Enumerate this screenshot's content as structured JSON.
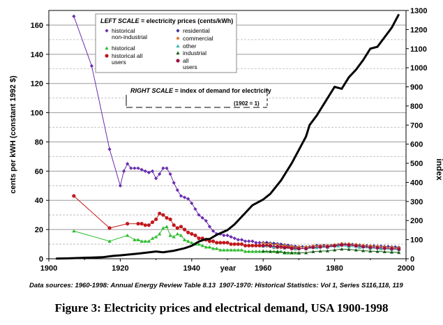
{
  "caption": "Figure 3: Electricity prices and electrical demand, USA 1900-1998",
  "sources": {
    "left": "Data sources: 1960-1998: Annual Energy Review Table 8.13",
    "right": "1907-1970: Historical Statistics:  Vol 1, Series S116,118, 119"
  },
  "chart_data": {
    "type": "line",
    "xlabel": "year",
    "ylabel_left": "cents per kWH (constant 1992 $)",
    "ylabel_right": "index",
    "xlim": [
      1900,
      2000
    ],
    "ylim_left": [
      0,
      170
    ],
    "ylim_right": [
      0,
      1300
    ],
    "x_ticks": [
      "1900",
      "1920",
      "1940",
      "1960",
      "1980",
      "2000"
    ],
    "y_ticks_left": [
      "0",
      "20",
      "40",
      "60",
      "80",
      "100",
      "120",
      "140",
      "160"
    ],
    "y_ticks_right": [
      "0",
      "100",
      "200",
      "300",
      "400",
      "500",
      "600",
      "700",
      "800",
      "900",
      "1000",
      "1100",
      "1200",
      "1300"
    ],
    "grid": true,
    "legend_title_left": "LEFT SCALE",
    "legend_title_left_rest": " = electricity prices (cents/kWh)",
    "legend_title_right": "RIGHT SCALE",
    "legend_title_right_rest": " = index of demand for electricity",
    "legend_note": "(1902 = 1)",
    "legend_items": [
      {
        "label": "historical non-industrial",
        "color": "#6a2cb0",
        "marker": "diamond"
      },
      {
        "label": "historical",
        "color": "#2ebc2e",
        "marker": "triangle"
      },
      {
        "label": "historical all users",
        "color": "#c0181c",
        "marker": "circle"
      },
      {
        "label": "residential",
        "color": "#3c2a96",
        "marker": "diamond"
      },
      {
        "label": "commercial",
        "color": "#e07a2a",
        "marker": "diamond"
      },
      {
        "label": "other",
        "color": "#38b8b0",
        "marker": "triangle"
      },
      {
        "label": "industrial",
        "color": "#1a5c1a",
        "marker": "triangle"
      },
      {
        "label": "all users",
        "color": "#a01040",
        "marker": "circle"
      }
    ],
    "series": [
      {
        "name": "historical non-industrial",
        "axis": "left",
        "color": "#6a2cb0",
        "marker": "diamond",
        "x": [
          1907,
          1912,
          1917,
          1920,
          1921,
          1922,
          1923,
          1924,
          1925,
          1926,
          1927,
          1928,
          1929,
          1930,
          1931,
          1932,
          1933,
          1934,
          1935,
          1936,
          1937,
          1938,
          1939,
          1940,
          1941,
          1942,
          1943,
          1944,
          1945,
          1946,
          1947,
          1948,
          1949,
          1950,
          1951,
          1952,
          1953,
          1954,
          1955,
          1956,
          1957,
          1958,
          1959,
          1960,
          1961,
          1962,
          1963,
          1964,
          1965,
          1966,
          1967,
          1968,
          1969,
          1970
        ],
        "y": [
          166,
          132,
          75,
          50,
          60,
          65,
          62,
          62,
          62,
          61,
          60,
          59,
          60,
          55,
          58,
          62,
          62,
          58,
          52,
          47,
          43,
          42,
          41,
          38,
          34,
          30,
          28,
          26,
          22,
          19,
          17,
          17,
          16,
          16,
          15,
          14,
          13,
          13,
          12,
          12,
          12,
          11,
          11,
          11,
          11,
          10,
          10,
          10,
          9,
          9,
          9,
          8,
          8,
          8
        ]
      },
      {
        "name": "historical",
        "axis": "left",
        "color": "#2ebc2e",
        "marker": "triangle",
        "x": [
          1907,
          1917,
          1922,
          1924,
          1925,
          1926,
          1927,
          1928,
          1929,
          1930,
          1931,
          1932,
          1933,
          1934,
          1935,
          1936,
          1937,
          1938,
          1939,
          1940,
          1941,
          1942,
          1943,
          1944,
          1945,
          1946,
          1947,
          1948,
          1949,
          1950,
          1951,
          1952,
          1953,
          1954,
          1955,
          1956,
          1957,
          1958,
          1959,
          1960,
          1961,
          1962,
          1963,
          1964,
          1965,
          1966,
          1967,
          1968,
          1969,
          1970
        ],
        "y": [
          19,
          12,
          16,
          13,
          13,
          12,
          12,
          12,
          14,
          15,
          17,
          21,
          22,
          16,
          15,
          17,
          16,
          13,
          12,
          11,
          10,
          10,
          9,
          8,
          8,
          7,
          7,
          6,
          6,
          6,
          6,
          6,
          6,
          6,
          5,
          5,
          5,
          5,
          5,
          5,
          5,
          5,
          5,
          5,
          5,
          4,
          4,
          4,
          4,
          4
        ]
      },
      {
        "name": "historical all users",
        "axis": "left",
        "color": "#c0181c",
        "marker": "circle",
        "x": [
          1907,
          1917,
          1922,
          1925,
          1926,
          1927,
          1928,
          1929,
          1930,
          1931,
          1932,
          1933,
          1934,
          1935,
          1936,
          1937,
          1938,
          1939,
          1940,
          1941,
          1942,
          1943,
          1944,
          1945,
          1946,
          1947,
          1948,
          1949,
          1950,
          1951,
          1952,
          1953,
          1954,
          1955,
          1956,
          1957,
          1958,
          1959,
          1960,
          1961,
          1962,
          1963,
          1964,
          1965,
          1966,
          1967,
          1968,
          1969,
          1970
        ],
        "y": [
          43,
          21,
          24,
          24,
          24,
          23,
          23,
          25,
          27,
          31,
          30,
          28,
          27,
          23,
          21,
          22,
          20,
          18,
          17,
          16,
          14,
          14,
          13,
          12,
          12,
          11,
          11,
          11,
          11,
          10,
          10,
          10,
          10,
          9,
          9,
          9,
          9,
          9,
          9,
          9,
          9,
          8,
          8,
          8,
          8,
          8,
          7,
          7,
          7
        ]
      },
      {
        "name": "residential",
        "axis": "left",
        "color": "#3c2a96",
        "marker": "diamond",
        "x": [
          1960,
          1961,
          1962,
          1963,
          1964,
          1965,
          1966,
          1967,
          1968,
          1969,
          1970,
          1971,
          1972,
          1973,
          1974,
          1975,
          1976,
          1977,
          1978,
          1979,
          1980,
          1981,
          1982,
          1983,
          1984,
          1985,
          1986,
          1987,
          1988,
          1989,
          1990,
          1991,
          1992,
          1993,
          1994,
          1995,
          1996,
          1997,
          1998
        ],
        "y": [
          11,
          11,
          10.7,
          10.5,
          10.2,
          9.9,
          9.5,
          9.2,
          8.8,
          8.5,
          8.2,
          8.2,
          8.2,
          8.2,
          8.7,
          9.0,
          9.0,
          9.1,
          9.1,
          9.0,
          9.3,
          9.6,
          10.0,
          10.0,
          9.9,
          9.8,
          9.6,
          9.3,
          9.1,
          8.9,
          8.8,
          8.7,
          8.6,
          8.5,
          8.4,
          8.3,
          8.1,
          8.0,
          7.8
        ]
      },
      {
        "name": "commercial",
        "axis": "left",
        "color": "#e07a2a",
        "marker": "diamond",
        "x": [
          1960,
          1962,
          1964,
          1966,
          1968,
          1970,
          1972,
          1974,
          1976,
          1978,
          1980,
          1982,
          1984,
          1986,
          1988,
          1990,
          1992,
          1994,
          1996,
          1998
        ],
        "y": [
          10.6,
          10.2,
          9.6,
          9.0,
          8.5,
          8.0,
          8.0,
          8.8,
          9.0,
          9.0,
          9.6,
          10.4,
          10.2,
          9.8,
          9.2,
          8.8,
          8.5,
          8.2,
          7.8,
          7.4
        ]
      },
      {
        "name": "other",
        "axis": "left",
        "color": "#38b8b0",
        "marker": "triangle",
        "x": [
          1960,
          1963,
          1966,
          1969,
          1972,
          1975,
          1978,
          1981,
          1984,
          1987,
          1990,
          1993,
          1996,
          1998
        ],
        "y": [
          8.6,
          8.0,
          7.4,
          6.8,
          6.8,
          7.6,
          7.8,
          8.8,
          8.4,
          7.8,
          7.2,
          6.8,
          6.4,
          6.2
        ]
      },
      {
        "name": "industrial",
        "axis": "left",
        "color": "#1a5c1a",
        "marker": "triangle",
        "x": [
          1960,
          1962,
          1964,
          1966,
          1968,
          1970,
          1972,
          1974,
          1976,
          1978,
          1980,
          1982,
          1984,
          1986,
          1988,
          1990,
          1992,
          1994,
          1996,
          1998
        ],
        "y": [
          5.2,
          5.0,
          4.6,
          4.3,
          4.1,
          4.0,
          4.1,
          4.9,
          5.2,
          5.4,
          6.0,
          6.6,
          6.4,
          6.0,
          5.5,
          5.2,
          5.0,
          4.8,
          4.5,
          4.3
        ]
      },
      {
        "name": "all users",
        "axis": "left",
        "color": "#a01040",
        "marker": "circle",
        "x": [
          1960,
          1962,
          1964,
          1966,
          1968,
          1970,
          1972,
          1974,
          1976,
          1978,
          1980,
          1982,
          1984,
          1986,
          1988,
          1990,
          1992,
          1994,
          1996,
          1998
        ],
        "y": [
          9.0,
          8.7,
          8.2,
          7.6,
          7.1,
          6.9,
          7.0,
          7.8,
          8.1,
          8.2,
          8.8,
          9.5,
          9.3,
          8.8,
          8.2,
          7.8,
          7.5,
          7.2,
          6.9,
          6.6
        ]
      },
      {
        "name": "index of demand",
        "axis": "right",
        "color": "#000000",
        "marker": "none",
        "x": [
          1902,
          1905,
          1910,
          1915,
          1918,
          1920,
          1925,
          1930,
          1932,
          1935,
          1938,
          1940,
          1942,
          1944,
          1945,
          1947,
          1950,
          1952,
          1955,
          1957,
          1960,
          1962,
          1965,
          1968,
          1970,
          1972,
          1973,
          1975,
          1977,
          1979,
          1980,
          1982,
          1984,
          1986,
          1988,
          1990,
          1992,
          1994,
          1996,
          1998
        ],
        "y": [
          1,
          2,
          5,
          8,
          15,
          18,
          27,
          38,
          34,
          42,
          55,
          68,
          90,
          103,
          103,
          125,
          150,
          180,
          240,
          280,
          310,
          340,
          410,
          500,
          570,
          640,
          700,
          750,
          810,
          870,
          900,
          890,
          950,
          990,
          1040,
          1100,
          1110,
          1160,
          1210,
          1280
        ]
      }
    ]
  }
}
